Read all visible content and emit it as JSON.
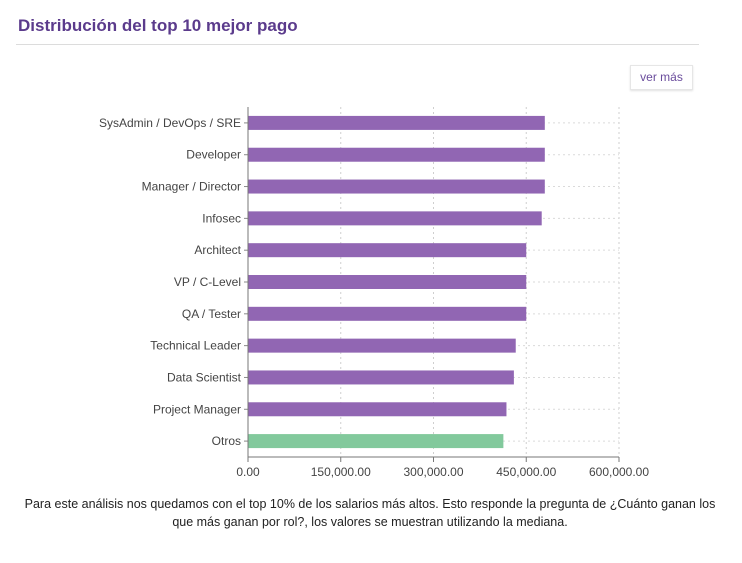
{
  "header": {
    "title": "Distribución del top 10 mejor pago",
    "more_button": "ver más"
  },
  "colors": {
    "primary_bar": "#9166b3",
    "other_bar": "#82c99c",
    "title": "#5b3b8c"
  },
  "chart_data": {
    "type": "bar",
    "orientation": "horizontal",
    "categories": [
      "SysAdmin / DevOps / SRE",
      "Developer",
      "Manager / Director",
      "Infosec",
      "Architect",
      "VP / C-Level",
      "QA / Tester",
      "Technical Leader",
      "Data Scientist",
      "Project Manager",
      "Otros"
    ],
    "values": [
      480000,
      480000,
      480000,
      475000,
      450000,
      450000,
      450000,
      433000,
      430000,
      418000,
      413000
    ],
    "highlight_category": "Otros",
    "xlim": [
      0,
      600000
    ],
    "xticks": [
      0,
      150000,
      300000,
      450000,
      600000
    ],
    "xtick_labels": [
      "0.00",
      "150,000.00",
      "300,000.00",
      "450,000.00",
      "600,000.00"
    ],
    "title": "",
    "xlabel": "",
    "ylabel": "",
    "grid": true,
    "legend": "none"
  },
  "footer": {
    "note": "Para este análisis nos quedamos con el top 10% de los salarios más altos. Esto responde la pregunta de ¿Cuánto ganan los que más ganan por rol?, los valores se muestran utilizando la mediana."
  }
}
